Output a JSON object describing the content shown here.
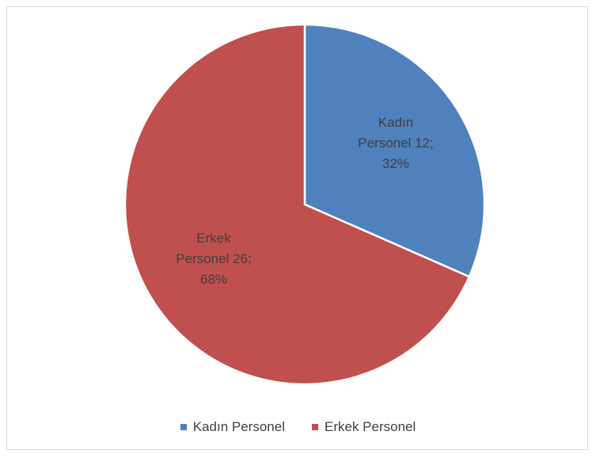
{
  "chart_data": {
    "type": "pie",
    "categories": [
      "Kadın Personel",
      "Erkek Personel"
    ],
    "values": [
      12,
      26
    ],
    "percentages": [
      32,
      68
    ],
    "colors": [
      "#4f81bd",
      "#c0504d"
    ],
    "data_labels": [
      [
        "Kadın",
        "Personel 12;",
        "32%"
      ],
      [
        "Erkek",
        "Personel 26;",
        "68%"
      ]
    ],
    "legend": {
      "placement": "bottom",
      "entries": [
        "Kadın Personel",
        "Erkek Personel"
      ]
    }
  }
}
